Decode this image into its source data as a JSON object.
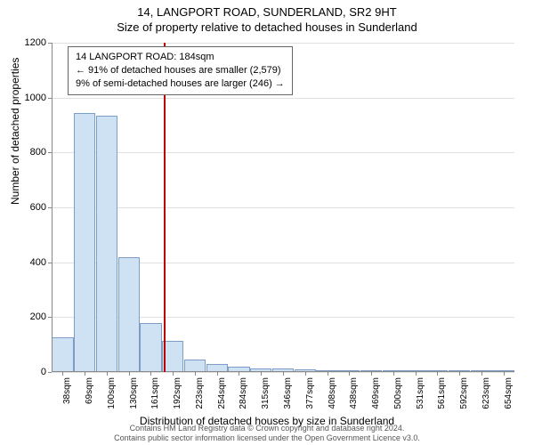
{
  "header": {
    "address": "14, LANGPORT ROAD, SUNDERLAND, SR2 9HT",
    "subtitle": "Size of property relative to detached houses in Sunderland"
  },
  "chart": {
    "type": "histogram",
    "ylabel": "Number of detached properties",
    "xlabel": "Distribution of detached houses by size in Sunderland",
    "ylim": [
      0,
      1200
    ],
    "ytick_step": 200,
    "yticks": [
      0,
      200,
      400,
      600,
      800,
      1000,
      1200
    ],
    "bar_fill": "#cfe2f3",
    "bar_stroke": "#7a9ec7",
    "grid_color": "#e0e0e0",
    "background_color": "#ffffff",
    "marker_color": "#c00000",
    "marker_x_index": 5,
    "categories": [
      "38sqm",
      "69sqm",
      "100sqm",
      "130sqm",
      "161sqm",
      "192sqm",
      "223sqm",
      "254sqm",
      "284sqm",
      "315sqm",
      "346sqm",
      "377sqm",
      "408sqm",
      "438sqm",
      "469sqm",
      "500sqm",
      "531sqm",
      "561sqm",
      "592sqm",
      "623sqm",
      "654sqm"
    ],
    "values": [
      125,
      945,
      935,
      420,
      180,
      115,
      45,
      30,
      18,
      14,
      12,
      10,
      5,
      4,
      8,
      3,
      2,
      2,
      2,
      1,
      1
    ],
    "title_fontsize": 13,
    "label_fontsize": 12,
    "tick_fontsize": 11
  },
  "callout": {
    "line1": "14 LANGPORT ROAD: 184sqm",
    "line2": "← 91% of detached houses are smaller (2,579)",
    "line3": "9% of semi-detached houses are larger (246) →"
  },
  "footer": {
    "line1": "Contains HM Land Registry data © Crown copyright and database right 2024.",
    "line2": "Contains public sector information licensed under the Open Government Licence v3.0."
  }
}
